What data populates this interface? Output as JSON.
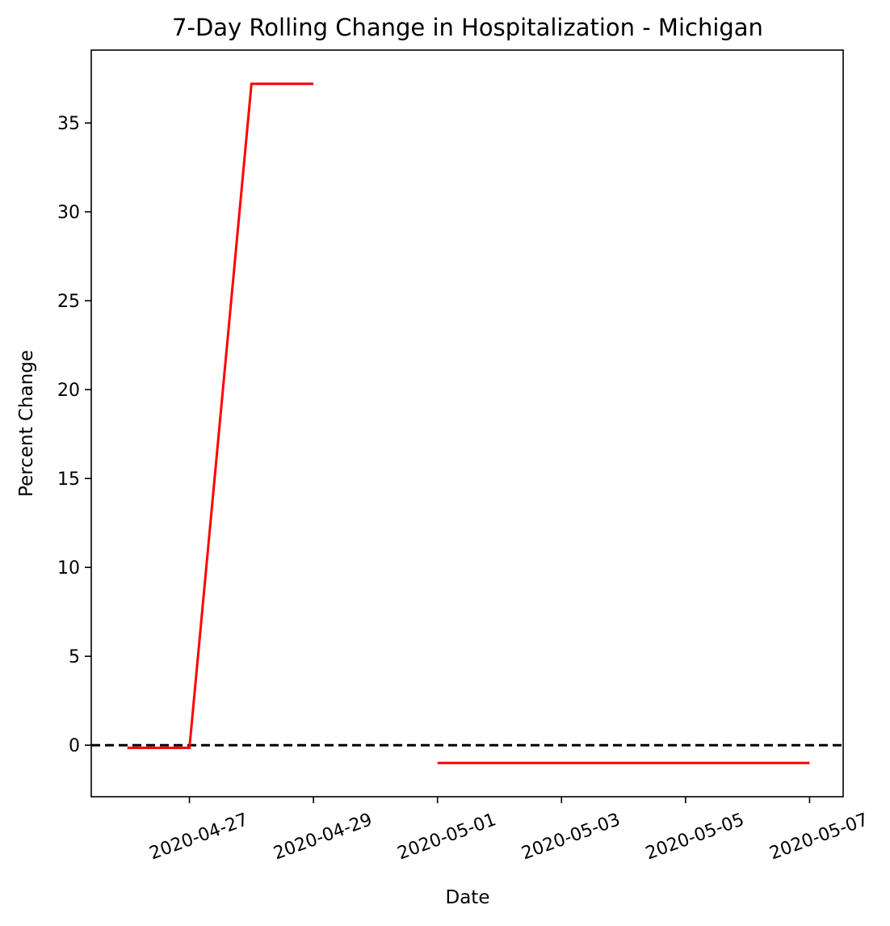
{
  "chart_data": {
    "type": "line",
    "title": "7-Day Rolling Change in Hospitalization - Michigan",
    "xlabel": "Date",
    "ylabel": "Percent Change",
    "x_ticks": [
      "2020-04-27",
      "2020-04-29",
      "2020-05-01",
      "2020-05-03",
      "2020-05-05",
      "2020-05-07"
    ],
    "y_ticks": [
      0,
      5,
      10,
      15,
      20,
      25,
      30,
      35
    ],
    "xlim": [
      "2020-04-25T10:00",
      "2020-05-07T13:00"
    ],
    "ylim": [
      -2.9,
      39.1
    ],
    "grid": false,
    "reference_line": {
      "y": 0,
      "style": "dashed",
      "color": "#000000"
    },
    "series": [
      {
        "color": "#ff0000",
        "segments": [
          [
            {
              "x": "2020-04-26",
              "y": -0.15
            },
            {
              "x": "2020-04-27",
              "y": -0.15
            },
            {
              "x": "2020-04-28",
              "y": 37.2
            },
            {
              "x": "2020-04-29",
              "y": 37.2
            }
          ],
          [
            {
              "x": "2020-05-01",
              "y": -1.0
            },
            {
              "x": "2020-05-07",
              "y": -1.0
            }
          ]
        ]
      }
    ]
  }
}
